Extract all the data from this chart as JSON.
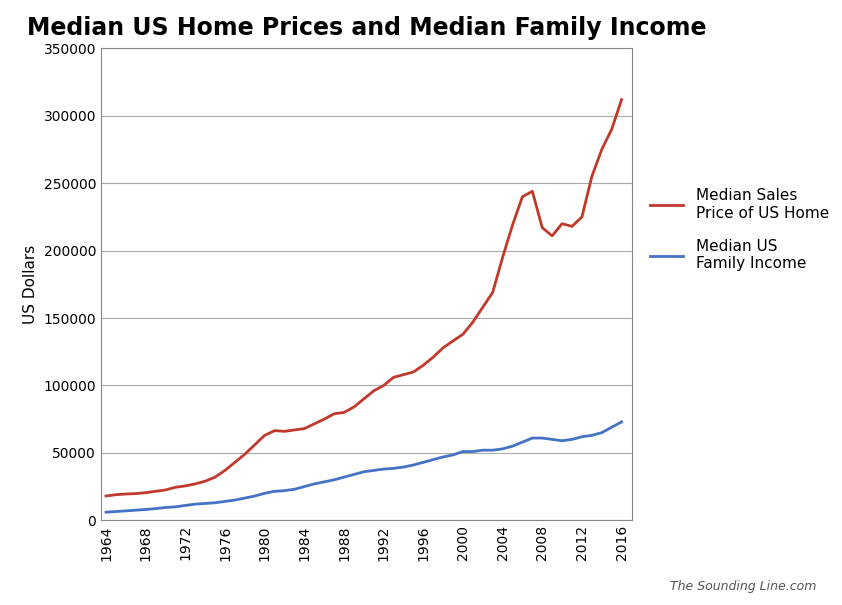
{
  "title": "Median US Home Prices and Median Family Income",
  "ylabel": "US Dollars",
  "watermark": "The Sounding Line.com",
  "ylim": [
    0,
    350000
  ],
  "yticks": [
    0,
    50000,
    100000,
    150000,
    200000,
    250000,
    300000,
    350000
  ],
  "home_prices": {
    "label": "Median Sales\nPrice of US Home",
    "color": "#c0392b",
    "years": [
      1964,
      1965,
      1966,
      1967,
      1968,
      1969,
      1970,
      1971,
      1972,
      1973,
      1974,
      1975,
      1976,
      1977,
      1978,
      1979,
      1980,
      1981,
      1982,
      1983,
      1984,
      1985,
      1986,
      1987,
      1988,
      1989,
      1990,
      1991,
      1992,
      1993,
      1994,
      1995,
      1996,
      1997,
      1998,
      1999,
      2000,
      2001,
      2002,
      2003,
      2004,
      2005,
      2006,
      2007,
      2008,
      2009,
      2010,
      2011,
      2012,
      2013,
      2014,
      2015,
      2016
    ],
    "values": [
      18000,
      19000,
      19500,
      19800,
      20500,
      21500,
      22500,
      24500,
      25500,
      27000,
      29000,
      32000,
      37000,
      43000,
      49000,
      56000,
      63000,
      66500,
      66000,
      67000,
      68000,
      71500,
      75000,
      79000,
      80000,
      84000,
      90000,
      96000,
      100000,
      106000,
      108000,
      110000,
      115000,
      121000,
      128000,
      133000,
      138000,
      147000,
      158000,
      169000,
      195000,
      219000,
      240000,
      244000,
      217000,
      211000,
      220000,
      218000,
      225000,
      255000,
      275000,
      290000,
      312000
    ]
  },
  "family_income": {
    "label": "Median US\nFamily Income",
    "color": "#4472c4",
    "years": [
      1964,
      1965,
      1966,
      1967,
      1968,
      1969,
      1970,
      1971,
      1972,
      1973,
      1974,
      1975,
      1976,
      1977,
      1978,
      1979,
      1980,
      1981,
      1982,
      1983,
      1984,
      1985,
      1986,
      1987,
      1988,
      1989,
      1990,
      1991,
      1992,
      1993,
      1994,
      1995,
      1996,
      1997,
      1998,
      1999,
      2000,
      2001,
      2002,
      2003,
      2004,
      2005,
      2006,
      2007,
      2008,
      2009,
      2010,
      2011,
      2012,
      2013,
      2014,
      2015,
      2016
    ],
    "values": [
      6000,
      6500,
      7000,
      7500,
      8000,
      8700,
      9500,
      10000,
      11000,
      12000,
      12500,
      13000,
      14000,
      15000,
      16500,
      18000,
      20000,
      21500,
      22000,
      23000,
      25000,
      27000,
      28500,
      30000,
      32000,
      34000,
      36000,
      37000,
      38000,
      38500,
      39500,
      41000,
      43000,
      45000,
      47000,
      48500,
      51000,
      51000,
      52000,
      52000,
      53000,
      55000,
      58000,
      61000,
      61000,
      60000,
      59000,
      60000,
      62000,
      63000,
      65000,
      69000,
      73000
    ]
  },
  "xtick_years": [
    1964,
    1968,
    1972,
    1976,
    1980,
    1984,
    1988,
    1992,
    1996,
    2000,
    2004,
    2008,
    2012,
    2016
  ],
  "xlim": [
    1963.5,
    2017
  ],
  "background_color": "#ffffff",
  "grid_color": "#aaaaaa",
  "title_fontsize": 17,
  "axis_label_fontsize": 11,
  "tick_fontsize": 10,
  "legend_fontsize": 11,
  "watermark_fontsize": 9
}
